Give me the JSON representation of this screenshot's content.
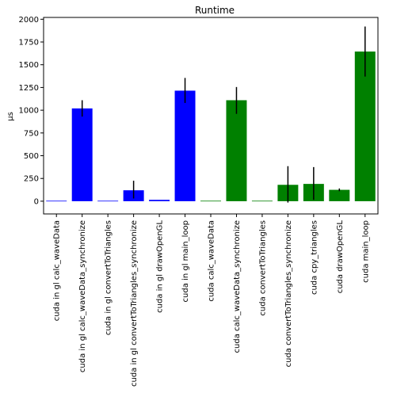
{
  "chart_data": {
    "type": "bar",
    "title": "Runtime",
    "xlabel": "",
    "ylabel": "μs",
    "ylim": [
      -140,
      2020
    ],
    "yticks": [
      0,
      250,
      500,
      750,
      1000,
      1250,
      1500,
      1750,
      2000
    ],
    "grid": false,
    "categories": [
      "cuda in gl calc_waveData",
      "cuda in gl calc_waveData_synchronize",
      "cuda in gl convertToTriangles",
      "cuda in gl convertToTriangles_synchronize",
      "cuda in gl drawOpenGL",
      "cuda in gl main_loop",
      "cuda calc_waveData",
      "cuda calc_waveData_synchronize",
      "cuda convertToTriangles",
      "cuda convertToTriangles_synchronize",
      "cuda cpy_triangles",
      "cuda drawOpenGL",
      "cuda main_loop"
    ],
    "values": [
      5,
      1020,
      5,
      120,
      15,
      1215,
      5,
      1110,
      5,
      180,
      190,
      125,
      1645
    ],
    "errors": [
      [
        5,
        5
      ],
      [
        930,
        1110
      ],
      [
        5,
        5
      ],
      [
        30,
        225
      ],
      [
        15,
        15
      ],
      [
        1080,
        1355
      ],
      [
        5,
        5
      ],
      [
        960,
        1255
      ],
      [
        5,
        5
      ],
      [
        -15,
        385
      ],
      [
        15,
        375
      ],
      [
        110,
        140
      ],
      [
        1370,
        1920
      ]
    ],
    "colors": [
      "#0000ff",
      "#0000ff",
      "#0000ff",
      "#0000ff",
      "#0000ff",
      "#0000ff",
      "#008000",
      "#008000",
      "#008000",
      "#008000",
      "#008000",
      "#008000",
      "#008000"
    ]
  }
}
